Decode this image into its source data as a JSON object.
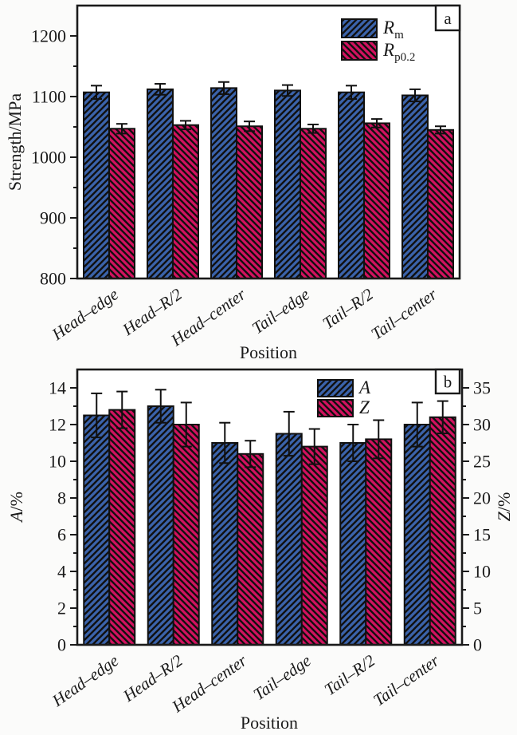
{
  "chart_data": [
    {
      "type": "bar",
      "panel_label": "a",
      "xlabel": "Position",
      "ylabel": "Strength/MPa",
      "categories": [
        "Head–edge",
        "Head–R/2",
        "Head–center",
        "Tail–edge",
        "Tail–R/2",
        "Tail–center"
      ],
      "ylim": [
        800,
        1250
      ],
      "yticks": [
        800,
        900,
        1000,
        1100,
        1200
      ],
      "yminor_step": 50,
      "grid": false,
      "legend_position": "top-inside-right",
      "series": [
        {
          "name": "Rm",
          "label_main": "R",
          "label_sub": "m",
          "color": "#3b63ab",
          "hatch": "/",
          "axis": "left",
          "values": [
            1107,
            1112,
            1114,
            1110,
            1107,
            1102
          ],
          "errors": [
            11,
            9,
            10,
            9,
            11,
            10
          ]
        },
        {
          "name": "Rp0.2",
          "label_main": "R",
          "label_sub": "p0.2",
          "color": "#d2125f",
          "hatch": "\\",
          "axis": "left",
          "values": [
            1047,
            1053,
            1051,
            1047,
            1056,
            1045
          ],
          "errors": [
            8,
            7,
            8,
            7,
            7,
            6
          ]
        }
      ]
    },
    {
      "type": "bar",
      "panel_label": "b",
      "xlabel": "Position",
      "ylabel": "A/%",
      "ylabel2": "Z/%",
      "categories": [
        "Head–edge",
        "Head–R/2",
        "Head–center",
        "Tail–edge",
        "Tail–R/2",
        "Tail–center"
      ],
      "ylim": [
        0,
        15
      ],
      "yticks": [
        0,
        2,
        4,
        6,
        8,
        10,
        12,
        14
      ],
      "yminor_step": 1,
      "ylim2": [
        0,
        37.5
      ],
      "yticks2": [
        0,
        5,
        10,
        15,
        20,
        25,
        30,
        35
      ],
      "yminor2_step": 2.5,
      "grid": false,
      "legend_position": "top-inside-right",
      "series": [
        {
          "name": "A",
          "label_main": "A",
          "label_sub": "",
          "color": "#3b63ab",
          "hatch": "/",
          "axis": "left",
          "values": [
            12.5,
            13.0,
            11.0,
            11.5,
            11.0,
            12.0
          ],
          "errors": [
            1.2,
            0.9,
            1.1,
            1.2,
            1.0,
            1.2
          ]
        },
        {
          "name": "Z",
          "label_main": "Z",
          "label_sub": "",
          "color": "#d2125f",
          "hatch": "\\",
          "axis": "right",
          "values": [
            32,
            30,
            26,
            27,
            28,
            31
          ],
          "errors": [
            2.5,
            3.0,
            1.8,
            2.4,
            2.6,
            2.2
          ]
        }
      ]
    }
  ]
}
